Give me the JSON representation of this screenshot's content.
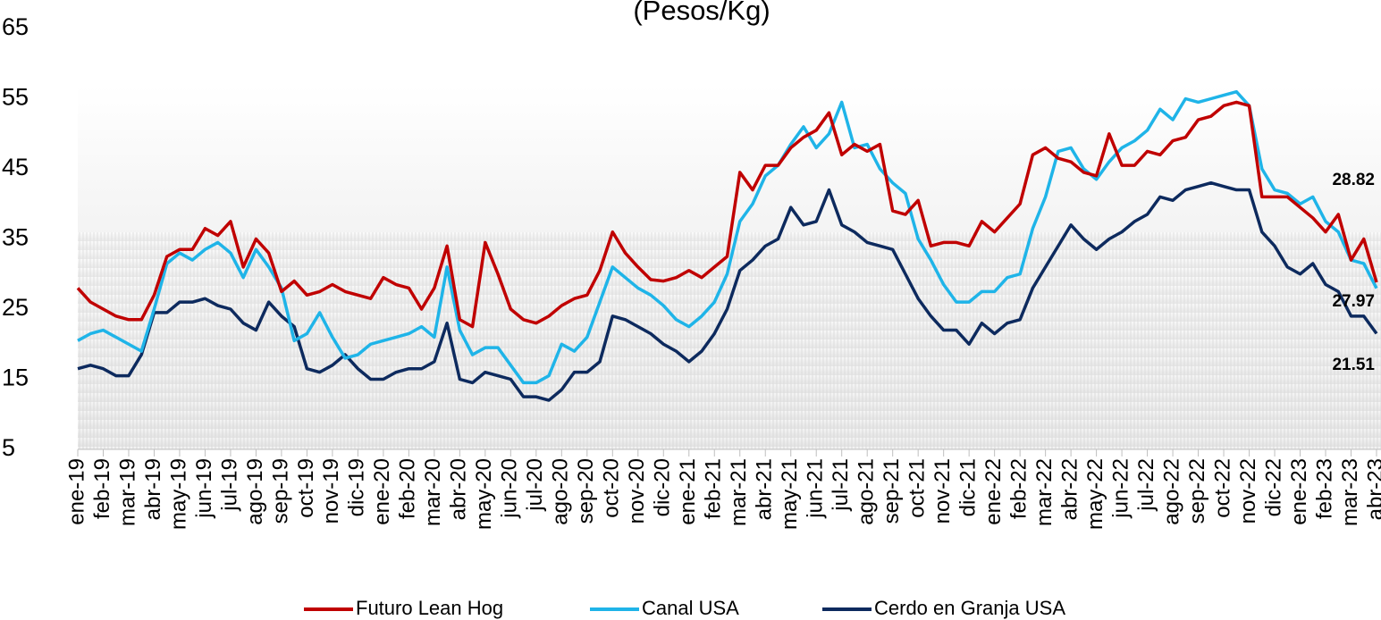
{
  "chart_data": {
    "type": "line",
    "title": "(Pesos/Kg)",
    "categories": [
      "ene-19",
      null,
      "feb-19",
      null,
      "mar-19",
      null,
      "abr-19",
      null,
      "may-19",
      null,
      "jun-19",
      null,
      "jul-19",
      null,
      "ago-19",
      null,
      "sep-19",
      null,
      "oct-19",
      null,
      "nov-19",
      null,
      "dic-19",
      null,
      "ene-20",
      null,
      "feb-20",
      null,
      "mar-20",
      null,
      "abr-20",
      null,
      "may-20",
      null,
      "jun-20",
      null,
      "jul-20",
      null,
      "ago-20",
      null,
      "sep-20",
      null,
      "oct-20",
      null,
      "nov-20",
      null,
      "dic-20",
      null,
      "ene-21",
      null,
      "feb-21",
      null,
      "mar-21",
      null,
      "abr-21",
      null,
      "may-21",
      null,
      "jun-21",
      null,
      "jul-21",
      null,
      "ago-21",
      null,
      "sep-21",
      null,
      "oct-21",
      null,
      "nov-21",
      null,
      "dic-21",
      null,
      "ene-22",
      null,
      "feb-22",
      null,
      "mar-22",
      null,
      "abr-22",
      null,
      "may-22",
      null,
      "jun-22",
      null,
      "jul-22",
      null,
      "ago-22",
      null,
      "sep-22",
      null,
      "oct-22",
      null,
      "nov-22",
      null,
      "dic-22",
      null,
      "ene-23",
      null,
      "feb-23",
      null,
      "mar-23",
      null,
      "abr-23"
    ],
    "series": [
      {
        "name": "Futuro Lean Hog",
        "color": "#c00000",
        "values": [
          28,
          26,
          25,
          24,
          23.5,
          23.5,
          27,
          32.5,
          33.5,
          33.5,
          36.5,
          35.5,
          37.5,
          31,
          35,
          33,
          27.5,
          29,
          27,
          27.5,
          28.5,
          27.5,
          27,
          26.5,
          29.5,
          28.5,
          28,
          25,
          28,
          34,
          23.5,
          22.5,
          34.5,
          30,
          25,
          23.5,
          23,
          24,
          25.5,
          26.5,
          27,
          30.5,
          36,
          33,
          31,
          29.2,
          29,
          29.5,
          30.5,
          29.5,
          31,
          32.5,
          44.5,
          42,
          45.5,
          45.5,
          48,
          49.5,
          50.5,
          53,
          47,
          48.5,
          47.5,
          48.5,
          39,
          38.5,
          40.5,
          34,
          34.5,
          34.5,
          34,
          37.5,
          36,
          38,
          40,
          47,
          48,
          46.5,
          46,
          44.5,
          44,
          50,
          45.5,
          45.5,
          47.5,
          47,
          49,
          49.5,
          52,
          52.5,
          54,
          54.5,
          54,
          41,
          41,
          41,
          39.5,
          38,
          36,
          38.5,
          32,
          35,
          28.82
        ]
      },
      {
        "name": "Canal USA",
        "color": "#1fb4e8",
        "values": [
          20.5,
          21.5,
          22,
          21,
          20,
          19,
          25,
          31.5,
          33,
          32,
          33.5,
          34.5,
          33,
          29.5,
          33.5,
          31,
          28,
          20.5,
          21.5,
          24.5,
          21,
          18,
          18.5,
          20,
          20.5,
          21,
          21.5,
          22.5,
          21,
          31,
          22,
          18.5,
          19.5,
          19.5,
          17,
          14.5,
          14.5,
          15.5,
          20,
          19,
          21,
          26,
          31,
          29.5,
          28,
          27,
          25.5,
          23.5,
          22.5,
          24,
          26,
          30,
          37.5,
          40,
          44,
          45.5,
          48.5,
          51,
          48,
          50,
          54.5,
          48,
          48.5,
          45,
          43,
          41.5,
          35,
          32,
          28.5,
          26,
          26,
          27.5,
          27.5,
          29.5,
          30,
          36.5,
          41,
          47.5,
          48,
          45,
          43.5,
          46,
          48,
          49,
          50.5,
          53.5,
          52,
          55,
          54.5,
          55,
          55.5,
          56,
          54,
          45,
          42,
          41.5,
          40,
          41,
          37.5,
          36,
          32,
          31.5,
          27.97
        ]
      },
      {
        "name": "Cerdo en Granja USA",
        "color": "#0d2a5e",
        "values": [
          16.5,
          17,
          16.5,
          15.5,
          15.5,
          18.5,
          24.5,
          24.5,
          26,
          26,
          26.5,
          25.5,
          25,
          23,
          22,
          26,
          24,
          22.5,
          16.5,
          16,
          17,
          18.5,
          16.5,
          15,
          15,
          16,
          16.5,
          16.5,
          17.5,
          23,
          15,
          14.5,
          16,
          15.5,
          15,
          12.5,
          12.5,
          12,
          13.5,
          16,
          16,
          17.5,
          24,
          23.5,
          22.5,
          21.5,
          20,
          19,
          17.5,
          19,
          21.5,
          25,
          30.5,
          32,
          34,
          35,
          39.5,
          37,
          37.5,
          42,
          37,
          36,
          34.5,
          34,
          33.5,
          30,
          26.5,
          24,
          22,
          22,
          20,
          23,
          21.5,
          23,
          23.5,
          28,
          31,
          34,
          37,
          35,
          33.5,
          35,
          36,
          37.5,
          38.5,
          41,
          40.5,
          42,
          42.5,
          43,
          42.5,
          42,
          42,
          36,
          34,
          31,
          30,
          31.5,
          28.5,
          27.5,
          24,
          24,
          21.51
        ]
      }
    ],
    "ylim": [
      5,
      65
    ],
    "yticks": [
      5,
      15,
      25,
      35,
      45,
      55,
      65
    ],
    "grid": false,
    "legend": "bottom"
  }
}
